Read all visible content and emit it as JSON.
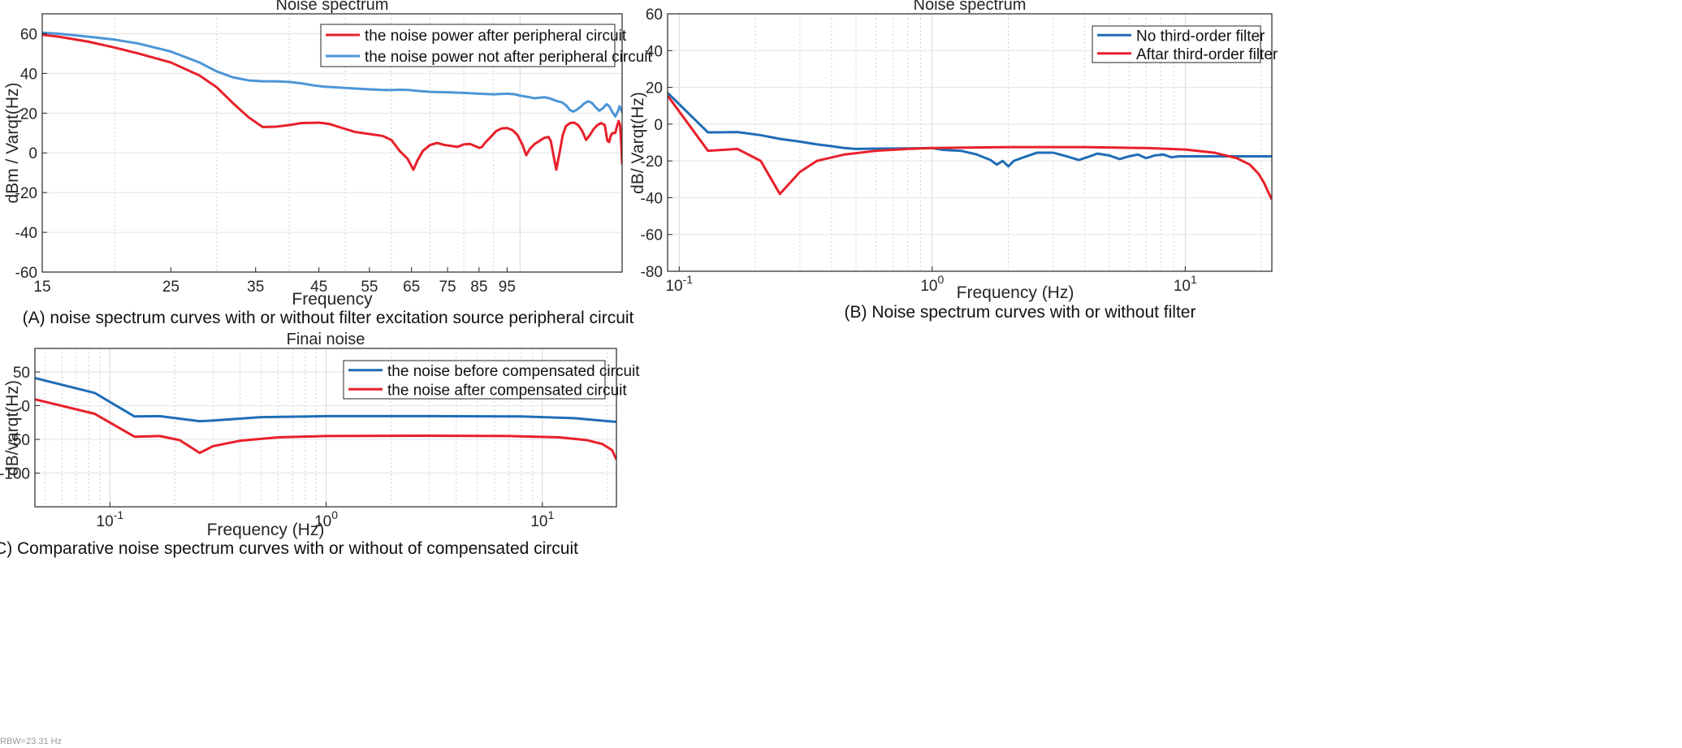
{
  "chart_data": [
    {
      "id": "A",
      "type": "line",
      "title": "Noise spectrum",
      "xlabel": "Frequency",
      "ylabel": "dBm / Varqt(Hz)",
      "caption": "(A) noise spectrum curves with or without filter excitation source peripheral circuit",
      "xscale": "log",
      "xlim": [
        15,
        150
      ],
      "ylim": [
        -60,
        70
      ],
      "xticks": [
        15,
        25,
        35,
        45,
        55,
        65,
        75,
        85,
        95
      ],
      "xtick_labels": [
        "15",
        "25",
        "35",
        "45",
        "55",
        "65",
        "75",
        "85",
        "95"
      ],
      "yticks": [
        -60,
        -40,
        -20,
        0,
        20,
        40,
        60
      ],
      "ytick_labels": [
        "-60",
        "-40",
        "-20",
        "0",
        "20",
        "40",
        "60"
      ],
      "grid": true,
      "legend_position": "top-right",
      "series": [
        {
          "name": "the noise power after peripheral circuit",
          "color": "#e8202a",
          "points": [
            [
              15,
              59.5
            ],
            [
              16,
              58.5
            ],
            [
              18,
              56
            ],
            [
              20,
              53
            ],
            [
              22,
              50
            ],
            [
              25,
              45.5
            ],
            [
              28,
              39
            ],
            [
              30,
              33
            ],
            [
              32,
              25
            ],
            [
              34,
              18
            ],
            [
              36,
              13
            ],
            [
              38,
              13.2
            ],
            [
              40,
              14
            ],
            [
              42,
              15
            ],
            [
              45,
              15.2
            ],
            [
              47,
              14.5
            ],
            [
              50,
              12
            ],
            [
              52,
              10.5
            ],
            [
              55,
              9.5
            ],
            [
              58,
              8.5
            ],
            [
              60,
              6.5
            ],
            [
              62,
              1
            ],
            [
              64,
              -3
            ],
            [
              65.5,
              -8.5
            ],
            [
              66.5,
              -4
            ],
            [
              68,
              1
            ],
            [
              70,
              4
            ],
            [
              72,
              5
            ],
            [
              74,
              4
            ],
            [
              76,
              3.5
            ],
            [
              78,
              3
            ],
            [
              80,
              4.3
            ],
            [
              82,
              4.5
            ],
            [
              84,
              3.2
            ],
            [
              85,
              2.5
            ],
            [
              86,
              3
            ],
            [
              87,
              5
            ],
            [
              89,
              8
            ],
            [
              91,
              11
            ],
            [
              93,
              12.3
            ],
            [
              95,
              12.5
            ],
            [
              97,
              11.5
            ],
            [
              99,
              9
            ],
            [
              101,
              4
            ],
            [
              102.5,
              -1.2
            ],
            [
              104,
              2
            ],
            [
              106,
              4.5
            ],
            [
              108,
              6
            ],
            [
              110,
              7.5
            ],
            [
              112,
              8
            ],
            [
              113,
              6
            ],
            [
              114,
              0
            ],
            [
              115.5,
              -8.5
            ],
            [
              117,
              0
            ],
            [
              118.5,
              9
            ],
            [
              120,
              13.5
            ],
            [
              122,
              15
            ],
            [
              124,
              15.2
            ],
            [
              126,
              14
            ],
            [
              128,
              11
            ],
            [
              130,
              6.5
            ],
            [
              132,
              9
            ],
            [
              134,
              12
            ],
            [
              136,
              14
            ],
            [
              138,
              15
            ],
            [
              140,
              14
            ],
            [
              141.5,
              6
            ],
            [
              142.5,
              5.5
            ],
            [
              143.5,
              9
            ],
            [
              144.5,
              10
            ],
            [
              146,
              10
            ],
            [
              147,
              13.5
            ],
            [
              148,
              16
            ],
            [
              148.8,
              14
            ],
            [
              149.4,
              6
            ],
            [
              150,
              -5.5
            ],
            [
              151,
              0.5
            ],
            [
              152,
              5
            ],
            [
              153.5,
              8
            ],
            [
              155,
              9.5
            ]
          ]
        },
        {
          "name": "the noise power not after peripheral circuit",
          "color": "#4c96d7",
          "points": [
            [
              15,
              60.5
            ],
            [
              16,
              60
            ],
            [
              18,
              58.5
            ],
            [
              20,
              57
            ],
            [
              22,
              55
            ],
            [
              25,
              51
            ],
            [
              28,
              45.5
            ],
            [
              30,
              41
            ],
            [
              32,
              38
            ],
            [
              34,
              36.5
            ],
            [
              36,
              36
            ],
            [
              38,
              36
            ],
            [
              40,
              35.7
            ],
            [
              42,
              35
            ],
            [
              44,
              34
            ],
            [
              46,
              33.3
            ],
            [
              48,
              33
            ],
            [
              50,
              32.7
            ],
            [
              52,
              32.4
            ],
            [
              55,
              32
            ],
            [
              58,
              31.7
            ],
            [
              60,
              31.6
            ],
            [
              62,
              31.8
            ],
            [
              64,
              31.7
            ],
            [
              66,
              31.3
            ],
            [
              70,
              30.7
            ],
            [
              75,
              30.5
            ],
            [
              80,
              30.2
            ],
            [
              85,
              29.8
            ],
            [
              90,
              29.5
            ],
            [
              95,
              29.8
            ],
            [
              98,
              29.5
            ],
            [
              100,
              28.8
            ],
            [
              103,
              28.2
            ],
            [
              106,
              27.5
            ],
            [
              108,
              27.8
            ],
            [
              110,
              28
            ],
            [
              112,
              27.6
            ],
            [
              114,
              26.8
            ],
            [
              116,
              26
            ],
            [
              118,
              25.5
            ],
            [
              120,
              24
            ],
            [
              122,
              21.5
            ],
            [
              123.5,
              20.8
            ],
            [
              125,
              21.5
            ],
            [
              127,
              23
            ],
            [
              129,
              24.8
            ],
            [
              131,
              26
            ],
            [
              133,
              25.2
            ],
            [
              135,
              23
            ],
            [
              137,
              21.2
            ],
            [
              139,
              22.5
            ],
            [
              141,
              24.5
            ],
            [
              142.5,
              23.5
            ],
            [
              144,
              21
            ],
            [
              146,
              18.3
            ],
            [
              147.5,
              21
            ],
            [
              148.5,
              23.5
            ],
            [
              150,
              20.5
            ],
            [
              152,
              19.5
            ],
            [
              153.5,
              20.5
            ],
            [
              155,
              21
            ]
          ]
        }
      ]
    },
    {
      "id": "B",
      "type": "line",
      "title": "Noise spectrum",
      "xlabel": "Frequency (Hz)",
      "ylabel": "dB/ Varqt(Hz)",
      "caption": "(B) Noise spectrum curves with or without filter",
      "xscale": "log",
      "xlim": [
        0.09,
        22
      ],
      "ylim": [
        -80,
        60
      ],
      "xticks": [
        0.1,
        1,
        10
      ],
      "xtick_labels": [
        [
          "10",
          "-1"
        ],
        [
          "10",
          "0"
        ],
        [
          "10",
          "1"
        ]
      ],
      "yticks": [
        -80,
        -60,
        -40,
        -20,
        0,
        20,
        40,
        60
      ],
      "ytick_labels": [
        "-80",
        "-60",
        "-40",
        "-20",
        "0",
        "20",
        "40",
        "60"
      ],
      "grid": true,
      "legend_position": "top-right",
      "series": [
        {
          "name": "No third-order filter",
          "color": "#1f6db6",
          "points": [
            [
              0.09,
              17
            ],
            [
              0.13,
              -4.5
            ],
            [
              0.17,
              -4.3
            ],
            [
              0.21,
              -6
            ],
            [
              0.25,
              -8
            ],
            [
              0.3,
              -9.5
            ],
            [
              0.35,
              -11
            ],
            [
              0.4,
              -12
            ],
            [
              0.45,
              -13
            ],
            [
              0.5,
              -13.5
            ],
            [
              0.6,
              -13.3
            ],
            [
              0.8,
              -13.2
            ],
            [
              1.0,
              -13
            ],
            [
              1.1,
              -14
            ],
            [
              1.3,
              -14.5
            ],
            [
              1.5,
              -16.5
            ],
            [
              1.7,
              -19.5
            ],
            [
              1.8,
              -22
            ],
            [
              1.9,
              -20
            ],
            [
              2.0,
              -23
            ],
            [
              2.1,
              -20
            ],
            [
              2.3,
              -18
            ],
            [
              2.6,
              -15.5
            ],
            [
              3.0,
              -15.5
            ],
            [
              3.4,
              -17.5
            ],
            [
              3.8,
              -19.5
            ],
            [
              4.1,
              -18
            ],
            [
              4.5,
              -16
            ],
            [
              5.0,
              -17
            ],
            [
              5.5,
              -19
            ],
            [
              6.0,
              -17.5
            ],
            [
              6.5,
              -16.5
            ],
            [
              7.0,
              -18.5
            ],
            [
              7.6,
              -17
            ],
            [
              8.2,
              -16.5
            ],
            [
              8.8,
              -18
            ],
            [
              9.5,
              -17.5
            ],
            [
              11,
              -17.5
            ],
            [
              14,
              -17.5
            ],
            [
              22,
              -17.5
            ]
          ]
        },
        {
          "name": "Aftar third-order filter",
          "color": "#e8202a",
          "points": [
            [
              0.09,
              15.5
            ],
            [
              0.13,
              -14.5
            ],
            [
              0.17,
              -13.5
            ],
            [
              0.21,
              -20
            ],
            [
              0.25,
              -38
            ],
            [
              0.3,
              -26
            ],
            [
              0.35,
              -20
            ],
            [
              0.45,
              -16.5
            ],
            [
              0.6,
              -14.5
            ],
            [
              0.8,
              -13.5
            ],
            [
              1.0,
              -13
            ],
            [
              2.0,
              -12.5
            ],
            [
              4.0,
              -12.5
            ],
            [
              7.0,
              -13
            ],
            [
              10,
              -13.8
            ],
            [
              13,
              -15.5
            ],
            [
              16,
              -18.5
            ],
            [
              18,
              -22
            ],
            [
              19.5,
              -27
            ],
            [
              20.5,
              -32
            ],
            [
              21.3,
              -37
            ],
            [
              22,
              -41
            ]
          ]
        }
      ]
    },
    {
      "id": "C",
      "type": "line",
      "title": "Finai noise",
      "xlabel": "Frequency (Hz)",
      "ylabel": "dB/varqt(Hz)",
      "caption": "(C) Comparative noise spectrum curves with or without of compensated circuit",
      "xscale": "log",
      "xlim": [
        0.045,
        22
      ],
      "ylim": [
        -150,
        85
      ],
      "xticks": [
        0.1,
        1,
        10
      ],
      "xtick_labels": [
        [
          "10",
          "-1"
        ],
        [
          "10",
          "0"
        ],
        [
          "10",
          "1"
        ]
      ],
      "yticks": [
        -100,
        -50,
        0,
        50
      ],
      "ytick_labels": [
        "-100",
        "-50",
        "0",
        "50"
      ],
      "grid": true,
      "legend_position": "top-right",
      "series": [
        {
          "name": "the noise before compensated circuit",
          "color": "#1f6db6",
          "points": [
            [
              0.045,
              41
            ],
            [
              0.085,
              19
            ],
            [
              0.13,
              -16
            ],
            [
              0.17,
              -15.5
            ],
            [
              0.26,
              -23
            ],
            [
              0.3,
              -22
            ],
            [
              0.5,
              -17
            ],
            [
              1.0,
              -15.5
            ],
            [
              3,
              -15.5
            ],
            [
              8,
              -16
            ],
            [
              14,
              -18.5
            ],
            [
              22,
              -24
            ]
          ]
        },
        {
          "name": "the noise after compensated circuit",
          "color": "#e8202a",
          "points": [
            [
              0.045,
              9.5
            ],
            [
              0.085,
              -12
            ],
            [
              0.13,
              -46
            ],
            [
              0.17,
              -45
            ],
            [
              0.21,
              -51
            ],
            [
              0.26,
              -70
            ],
            [
              0.3,
              -60
            ],
            [
              0.4,
              -52
            ],
            [
              0.6,
              -47
            ],
            [
              1.0,
              -45
            ],
            [
              3.0,
              -44.5
            ],
            [
              7.0,
              -45
            ],
            [
              12,
              -47
            ],
            [
              16,
              -51
            ],
            [
              19,
              -57
            ],
            [
              21,
              -66
            ],
            [
              22,
              -80
            ]
          ]
        }
      ]
    }
  ],
  "footer": {
    "rbw": "RBW=23.31 Hz"
  }
}
